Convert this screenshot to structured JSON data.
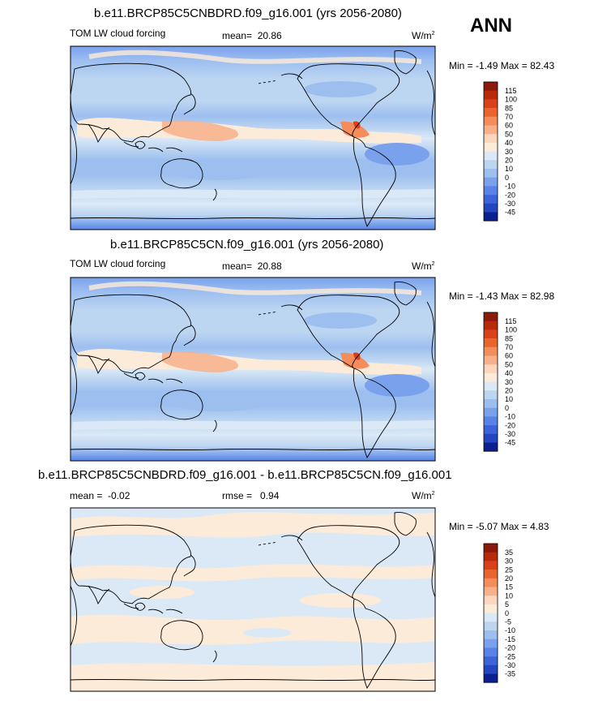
{
  "season": "ANN",
  "chart_data": [
    {
      "type": "heatmap",
      "map": "global cylindrical-equidistant contour map, Pacific-centered (Asia left, Americas right)",
      "title": "b.e11.BRCP85C5CNBDRD.f09_g16.001 (yrs 2056-2080)",
      "variable": "TOM LW cloud forcing",
      "mean_label": "mean=",
      "mean": "20.86",
      "units_base": "W/m",
      "units_exp": "2",
      "min_label": "Min =",
      "min": "-1.49",
      "max_label": "Max =",
      "max": "82.43",
      "colorbar": {
        "labels": [
          "115",
          "100",
          "85",
          "70",
          "60",
          "50",
          "40",
          "30",
          "20",
          "10",
          "0",
          "-10",
          "-20",
          "-30",
          "-45"
        ],
        "colors": [
          "#8b1a0a",
          "#b72a0c",
          "#d9411a",
          "#e9652e",
          "#f48c5c",
          "#f7b089",
          "#fbd6bd",
          "#fdebd9",
          "#dbe9f7",
          "#bcd5f1",
          "#9dbff0",
          "#7aa2ec",
          "#5a83e8",
          "#3c63d9",
          "#2445c2",
          "#0b1f8f"
        ]
      }
    },
    {
      "type": "heatmap",
      "map": "global cylindrical-equidistant contour map, Pacific-centered (Asia left, Americas right)",
      "title": "b.e11.BRCP85C5CN.f09_g16.001 (yrs 2056-2080)",
      "variable": "TOM LW cloud forcing",
      "mean_label": "mean=",
      "mean": "20.88",
      "units_base": "W/m",
      "units_exp": "2",
      "min_label": "Min =",
      "min": "-1.43",
      "max_label": "Max =",
      "max": "82.98",
      "colorbar": {
        "labels": [
          "115",
          "100",
          "85",
          "70",
          "60",
          "50",
          "40",
          "30",
          "20",
          "10",
          "0",
          "-10",
          "-20",
          "-30",
          "-45"
        ],
        "colors": [
          "#8b1a0a",
          "#b72a0c",
          "#d9411a",
          "#e9652e",
          "#f48c5c",
          "#f7b089",
          "#fbd6bd",
          "#fdebd9",
          "#dbe9f7",
          "#bcd5f1",
          "#9dbff0",
          "#7aa2ec",
          "#5a83e8",
          "#3c63d9",
          "#2445c2",
          "#0b1f8f"
        ]
      }
    },
    {
      "type": "heatmap",
      "map": "global cylindrical-equidistant contour map (difference), Pacific-centered",
      "title": "b.e11.BRCP85C5CNBDRD.f09_g16.001 - b.e11.BRCP85C5CN.f09_g16.001",
      "mean_label": "mean =",
      "mean": "-0.02",
      "rmse_label": "rmse =",
      "rmse": "0.94",
      "units": "W/m",
      "units_exp": "2",
      "min_label": "Min =",
      "min": "-5.07",
      "max_label": "Max =",
      "max": "4.83",
      "colorbar": {
        "labels": [
          "35",
          "30",
          "25",
          "20",
          "15",
          "10",
          "5",
          "0",
          "-5",
          "-10",
          "-15",
          "-20",
          "-25",
          "-30",
          "-35"
        ],
        "colors": [
          "#8b1a0a",
          "#b72a0c",
          "#d9411a",
          "#e9652e",
          "#f48c5c",
          "#f7b089",
          "#fbd6bd",
          "#fdebd9",
          "#dbe9f7",
          "#bcd5f1",
          "#9dbff0",
          "#7aa2ec",
          "#5a83e8",
          "#3c63d9",
          "#2445c2",
          "#0b1f8f"
        ]
      }
    }
  ]
}
